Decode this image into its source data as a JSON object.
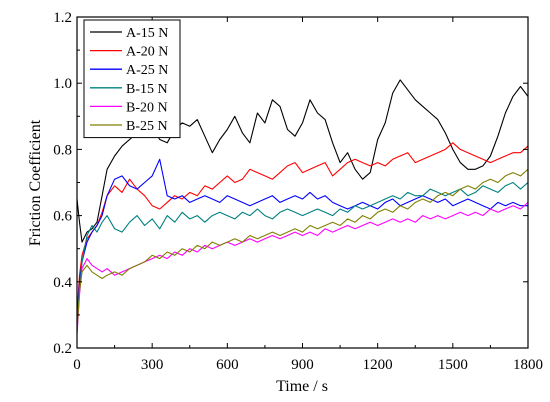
{
  "chart_data": {
    "type": "line",
    "title": "",
    "xlabel": "Time / s",
    "ylabel": "Friction Coefficient",
    "xlim": [
      0,
      1800
    ],
    "ylim": [
      0.2,
      1.2
    ],
    "x_ticks": [
      0,
      300,
      600,
      900,
      1200,
      1500,
      1800
    ],
    "y_ticks": [
      0.2,
      0.4,
      0.6,
      0.8,
      1.0,
      1.2
    ],
    "x_tick_labels": [
      "0",
      "300",
      "600",
      "900",
      "1200",
      "1500",
      "1800"
    ],
    "y_tick_labels": [
      "0.2",
      "0.4",
      "0.6",
      "0.8",
      "1.0",
      "1.2"
    ],
    "grid": false,
    "legend_position": "top-left",
    "series": [
      {
        "name": "A-15 N",
        "color": "#000000",
        "x": [
          0,
          10,
          20,
          40,
          60,
          80,
          100,
          120,
          150,
          180,
          210,
          240,
          270,
          300,
          330,
          360,
          390,
          420,
          450,
          480,
          510,
          540,
          570,
          600,
          630,
          660,
          690,
          720,
          750,
          780,
          810,
          840,
          870,
          900,
          930,
          960,
          990,
          1020,
          1050,
          1080,
          1110,
          1140,
          1170,
          1200,
          1230,
          1260,
          1290,
          1320,
          1350,
          1380,
          1410,
          1440,
          1470,
          1500,
          1530,
          1560,
          1590,
          1620,
          1650,
          1680,
          1710,
          1740,
          1770,
          1800
        ],
        "y": [
          0.65,
          0.58,
          0.52,
          0.55,
          0.56,
          0.58,
          0.66,
          0.74,
          0.78,
          0.81,
          0.83,
          0.85,
          0.84,
          0.87,
          0.83,
          0.82,
          0.86,
          0.88,
          0.87,
          0.89,
          0.84,
          0.79,
          0.83,
          0.86,
          0.9,
          0.85,
          0.82,
          0.91,
          0.88,
          0.95,
          0.93,
          0.86,
          0.84,
          0.88,
          0.95,
          0.91,
          0.89,
          0.82,
          0.76,
          0.79,
          0.74,
          0.71,
          0.73,
          0.83,
          0.88,
          0.97,
          1.01,
          0.98,
          0.95,
          0.93,
          0.91,
          0.89,
          0.85,
          0.8,
          0.76,
          0.74,
          0.74,
          0.75,
          0.78,
          0.84,
          0.91,
          0.96,
          0.99,
          0.96
        ]
      },
      {
        "name": "A-20 N",
        "color": "#ff0000",
        "x": [
          0,
          10,
          20,
          40,
          60,
          80,
          100,
          120,
          150,
          180,
          210,
          240,
          270,
          300,
          330,
          360,
          390,
          420,
          450,
          480,
          510,
          540,
          570,
          600,
          630,
          660,
          690,
          720,
          750,
          780,
          810,
          840,
          870,
          900,
          930,
          960,
          990,
          1020,
          1050,
          1080,
          1110,
          1140,
          1170,
          1200,
          1230,
          1260,
          1290,
          1320,
          1350,
          1380,
          1410,
          1440,
          1470,
          1500,
          1530,
          1560,
          1590,
          1620,
          1650,
          1680,
          1710,
          1740,
          1770,
          1800
        ],
        "y": [
          0.3,
          0.42,
          0.48,
          0.53,
          0.55,
          0.57,
          0.61,
          0.66,
          0.69,
          0.67,
          0.71,
          0.68,
          0.66,
          0.63,
          0.62,
          0.64,
          0.66,
          0.65,
          0.67,
          0.66,
          0.69,
          0.68,
          0.7,
          0.72,
          0.7,
          0.71,
          0.74,
          0.73,
          0.72,
          0.71,
          0.73,
          0.75,
          0.76,
          0.73,
          0.74,
          0.75,
          0.76,
          0.72,
          0.74,
          0.76,
          0.77,
          0.76,
          0.75,
          0.76,
          0.75,
          0.77,
          0.78,
          0.79,
          0.76,
          0.77,
          0.78,
          0.79,
          0.8,
          0.82,
          0.8,
          0.79,
          0.78,
          0.77,
          0.76,
          0.77,
          0.78,
          0.79,
          0.79,
          0.81
        ]
      },
      {
        "name": "A-25 N",
        "color": "#0000ff",
        "x": [
          0,
          10,
          20,
          40,
          60,
          80,
          100,
          120,
          150,
          180,
          210,
          240,
          270,
          300,
          330,
          360,
          390,
          420,
          450,
          480,
          510,
          540,
          570,
          600,
          630,
          660,
          690,
          720,
          750,
          780,
          810,
          840,
          870,
          900,
          930,
          960,
          990,
          1020,
          1050,
          1080,
          1110,
          1140,
          1170,
          1200,
          1230,
          1260,
          1290,
          1320,
          1350,
          1380,
          1410,
          1440,
          1470,
          1500,
          1530,
          1560,
          1590,
          1620,
          1650,
          1680,
          1710,
          1740,
          1770,
          1800
        ],
        "y": [
          0.28,
          0.4,
          0.46,
          0.52,
          0.55,
          0.57,
          0.6,
          0.66,
          0.71,
          0.72,
          0.69,
          0.68,
          0.7,
          0.72,
          0.77,
          0.66,
          0.65,
          0.66,
          0.64,
          0.65,
          0.66,
          0.65,
          0.64,
          0.66,
          0.65,
          0.64,
          0.63,
          0.64,
          0.65,
          0.66,
          0.64,
          0.65,
          0.66,
          0.65,
          0.67,
          0.65,
          0.66,
          0.64,
          0.63,
          0.62,
          0.63,
          0.64,
          0.63,
          0.62,
          0.64,
          0.65,
          0.63,
          0.64,
          0.65,
          0.66,
          0.65,
          0.64,
          0.65,
          0.63,
          0.64,
          0.65,
          0.64,
          0.63,
          0.62,
          0.64,
          0.63,
          0.64,
          0.63,
          0.63
        ]
      },
      {
        "name": "B-15 N",
        "color": "#008080",
        "x": [
          0,
          10,
          20,
          40,
          60,
          80,
          100,
          120,
          150,
          180,
          210,
          240,
          270,
          300,
          330,
          360,
          390,
          420,
          450,
          480,
          510,
          540,
          570,
          600,
          630,
          660,
          690,
          720,
          750,
          780,
          810,
          840,
          870,
          900,
          930,
          960,
          990,
          1020,
          1050,
          1080,
          1110,
          1140,
          1170,
          1200,
          1230,
          1260,
          1290,
          1320,
          1350,
          1380,
          1410,
          1440,
          1470,
          1500,
          1530,
          1560,
          1590,
          1620,
          1650,
          1680,
          1710,
          1740,
          1770,
          1800
        ],
        "y": [
          0.26,
          0.38,
          0.46,
          0.54,
          0.57,
          0.55,
          0.58,
          0.6,
          0.56,
          0.55,
          0.58,
          0.6,
          0.57,
          0.59,
          0.56,
          0.6,
          0.58,
          0.61,
          0.59,
          0.6,
          0.58,
          0.6,
          0.61,
          0.6,
          0.59,
          0.61,
          0.6,
          0.62,
          0.6,
          0.59,
          0.61,
          0.62,
          0.61,
          0.6,
          0.61,
          0.62,
          0.61,
          0.6,
          0.62,
          0.61,
          0.63,
          0.62,
          0.63,
          0.64,
          0.65,
          0.66,
          0.65,
          0.67,
          0.66,
          0.66,
          0.68,
          0.67,
          0.66,
          0.67,
          0.68,
          0.66,
          0.67,
          0.69,
          0.68,
          0.67,
          0.69,
          0.7,
          0.68,
          0.7
        ]
      },
      {
        "name": "B-20 N",
        "color": "#ff00ff",
        "x": [
          0,
          10,
          20,
          40,
          60,
          80,
          100,
          120,
          150,
          180,
          210,
          240,
          270,
          300,
          330,
          360,
          390,
          420,
          450,
          480,
          510,
          540,
          570,
          600,
          630,
          660,
          690,
          720,
          750,
          780,
          810,
          840,
          870,
          900,
          930,
          960,
          990,
          1020,
          1050,
          1080,
          1110,
          1140,
          1170,
          1200,
          1230,
          1260,
          1290,
          1320,
          1350,
          1380,
          1410,
          1440,
          1470,
          1500,
          1530,
          1560,
          1590,
          1620,
          1650,
          1680,
          1710,
          1740,
          1770,
          1800
        ],
        "y": [
          0.24,
          0.36,
          0.44,
          0.47,
          0.45,
          0.44,
          0.43,
          0.44,
          0.42,
          0.43,
          0.44,
          0.45,
          0.46,
          0.47,
          0.48,
          0.47,
          0.49,
          0.48,
          0.5,
          0.49,
          0.51,
          0.5,
          0.51,
          0.52,
          0.51,
          0.52,
          0.53,
          0.52,
          0.53,
          0.54,
          0.53,
          0.54,
          0.55,
          0.54,
          0.55,
          0.54,
          0.56,
          0.55,
          0.56,
          0.57,
          0.56,
          0.57,
          0.58,
          0.57,
          0.58,
          0.59,
          0.58,
          0.59,
          0.58,
          0.6,
          0.59,
          0.6,
          0.59,
          0.6,
          0.61,
          0.6,
          0.61,
          0.6,
          0.62,
          0.61,
          0.62,
          0.63,
          0.62,
          0.64
        ]
      },
      {
        "name": "B-25 N",
        "color": "#808000",
        "x": [
          0,
          10,
          20,
          40,
          60,
          80,
          100,
          120,
          150,
          180,
          210,
          240,
          270,
          300,
          330,
          360,
          390,
          420,
          450,
          480,
          510,
          540,
          570,
          600,
          630,
          660,
          690,
          720,
          750,
          780,
          810,
          840,
          870,
          900,
          930,
          960,
          990,
          1020,
          1050,
          1080,
          1110,
          1140,
          1170,
          1200,
          1230,
          1260,
          1290,
          1320,
          1350,
          1380,
          1410,
          1440,
          1470,
          1500,
          1530,
          1560,
          1590,
          1620,
          1650,
          1680,
          1710,
          1740,
          1770,
          1800
        ],
        "y": [
          0.25,
          0.37,
          0.43,
          0.45,
          0.43,
          0.42,
          0.41,
          0.42,
          0.43,
          0.42,
          0.44,
          0.45,
          0.46,
          0.48,
          0.47,
          0.49,
          0.48,
          0.5,
          0.49,
          0.51,
          0.5,
          0.52,
          0.51,
          0.52,
          0.53,
          0.52,
          0.54,
          0.53,
          0.54,
          0.55,
          0.54,
          0.55,
          0.56,
          0.55,
          0.57,
          0.56,
          0.57,
          0.58,
          0.57,
          0.59,
          0.58,
          0.6,
          0.59,
          0.61,
          0.62,
          0.61,
          0.63,
          0.62,
          0.64,
          0.65,
          0.64,
          0.66,
          0.67,
          0.66,
          0.68,
          0.69,
          0.68,
          0.7,
          0.71,
          0.7,
          0.72,
          0.73,
          0.72,
          0.74
        ]
      }
    ]
  }
}
